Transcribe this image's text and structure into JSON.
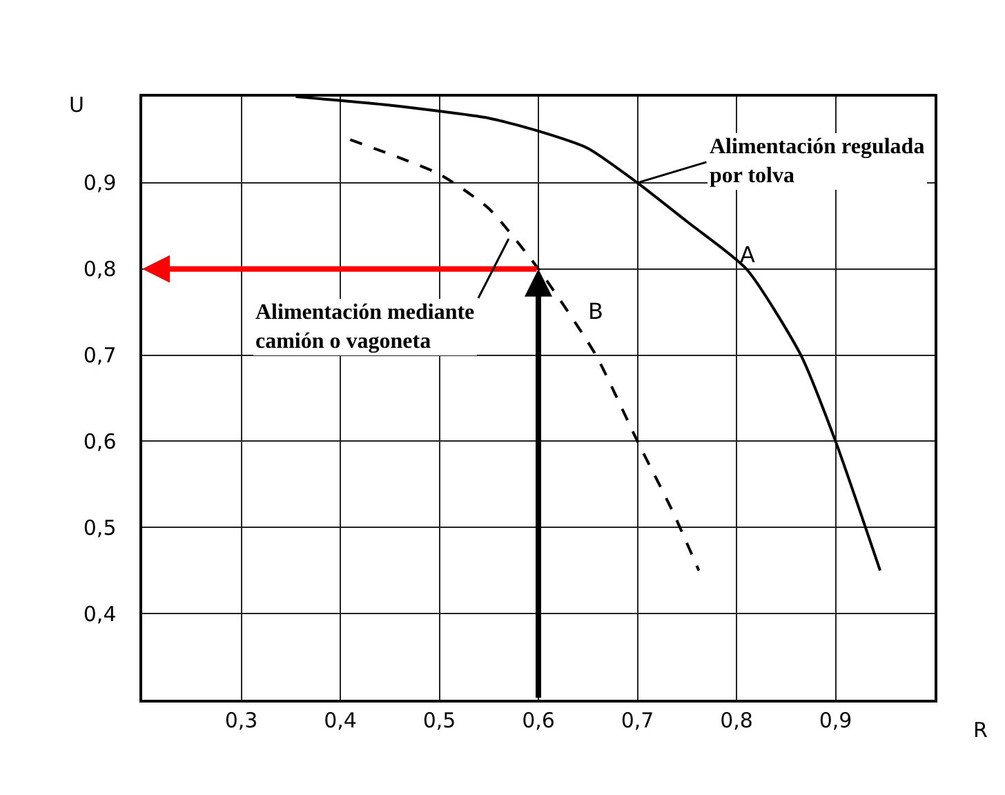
{
  "chart_data": {
    "type": "line",
    "xlabel": "R",
    "ylabel": "U",
    "xlim": [
      0.2,
      1.0
    ],
    "ylim": [
      0.3,
      1.0
    ],
    "xticks": [
      {
        "value": 0.3,
        "label": "0,3"
      },
      {
        "value": 0.4,
        "label": "0,4"
      },
      {
        "value": 0.5,
        "label": "0,5"
      },
      {
        "value": 0.6,
        "label": "0,6"
      },
      {
        "value": 0.7,
        "label": "0,7"
      },
      {
        "value": 0.8,
        "label": "0,8"
      },
      {
        "value": 0.9,
        "label": "0,9"
      }
    ],
    "yticks": [
      {
        "value": 0.4,
        "label": "0,4"
      },
      {
        "value": 0.5,
        "label": "0,5"
      },
      {
        "value": 0.6,
        "label": "0,6"
      },
      {
        "value": 0.7,
        "label": "0,7"
      },
      {
        "value": 0.8,
        "label": "0,8"
      },
      {
        "value": 0.9,
        "label": "0,9"
      }
    ],
    "grid": true,
    "series": [
      {
        "color": "#000000",
        "line_style": "solid",
        "x": [
          0.355,
          0.45,
          0.55,
          0.6,
          0.65,
          0.7,
          0.75,
          0.81,
          0.865,
          0.9,
          0.945
        ],
        "values": [
          1.0,
          0.99,
          0.975,
          0.96,
          0.94,
          0.9,
          0.855,
          0.8,
          0.7,
          0.6,
          0.45
        ]
      },
      {
        "color": "#000000",
        "line_style": "dashed",
        "x": [
          0.41,
          0.5,
          0.55,
          0.6,
          0.658,
          0.7,
          0.735,
          0.762
        ],
        "values": [
          0.95,
          0.91,
          0.87,
          0.8,
          0.7,
          0.6,
          0.52,
          0.45
        ]
      }
    ],
    "ref_lines": [
      {
        "axis": "y",
        "value": 0.8,
        "color": "#ff0000"
      },
      {
        "axis": "x",
        "value": 0.6,
        "color": "#000000"
      }
    ],
    "annotations": [
      {
        "text": "Alimentación regulada\npor tolva",
        "x": 0.7,
        "y": 0.9
      },
      {
        "text": "Alimentación mediante\ncamión o vagoneta",
        "x": 0.57,
        "y": 0.835
      },
      "A",
      "B"
    ]
  }
}
